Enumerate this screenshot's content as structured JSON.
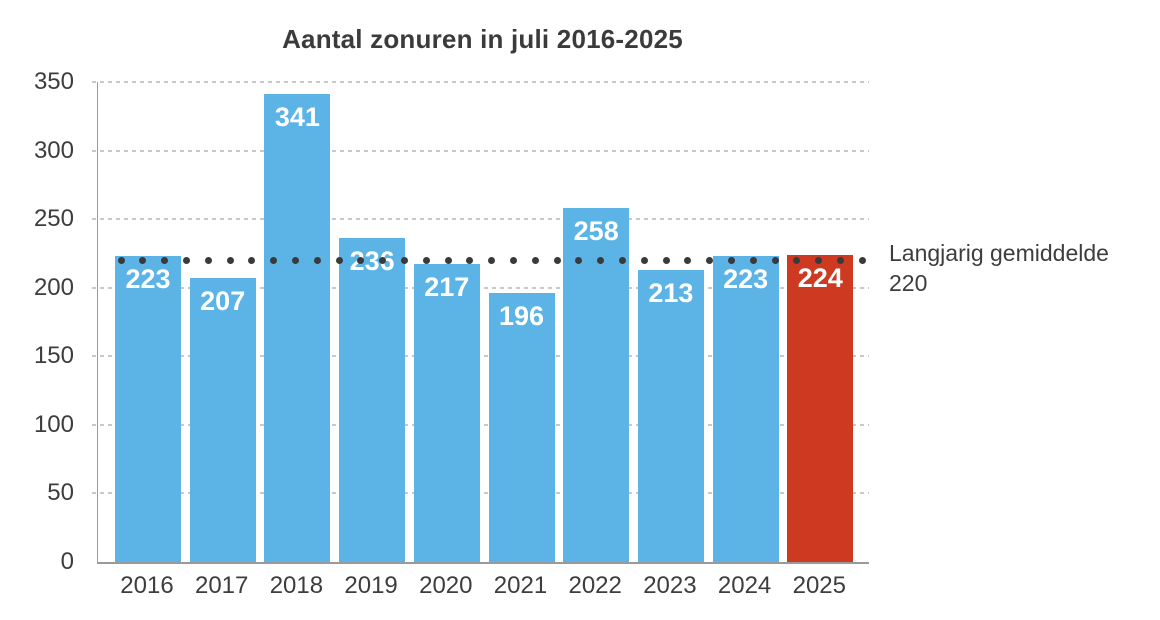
{
  "chart_data": {
    "type": "bar",
    "title": "Aantal zonuren in juli 2016-2025",
    "categories": [
      "2016",
      "2017",
      "2018",
      "2019",
      "2020",
      "2021",
      "2022",
      "2023",
      "2024",
      "2025"
    ],
    "values": [
      223,
      207,
      341,
      236,
      217,
      196,
      258,
      213,
      223,
      224
    ],
    "highlight_index": 9,
    "xlabel": "",
    "ylabel": "",
    "ylim": [
      0,
      350
    ],
    "y_ticks": [
      0,
      50,
      100,
      150,
      200,
      250,
      300,
      350
    ],
    "grid": true,
    "legend_position": "none",
    "average_line": {
      "value": 220,
      "label_line1": "Langjarig gemiddelde",
      "label_line2": "220",
      "style": "dotted"
    },
    "colors": {
      "bar": "#5bb3e6",
      "highlight_bar": "#cd3a21",
      "value_label": "#ffffff",
      "average_dots": "#3a3a3a",
      "gridline": "#c9c9c9",
      "axis": "#9a9a9a",
      "text": "#3d3d3d",
      "title": "#3b3b3b"
    }
  }
}
